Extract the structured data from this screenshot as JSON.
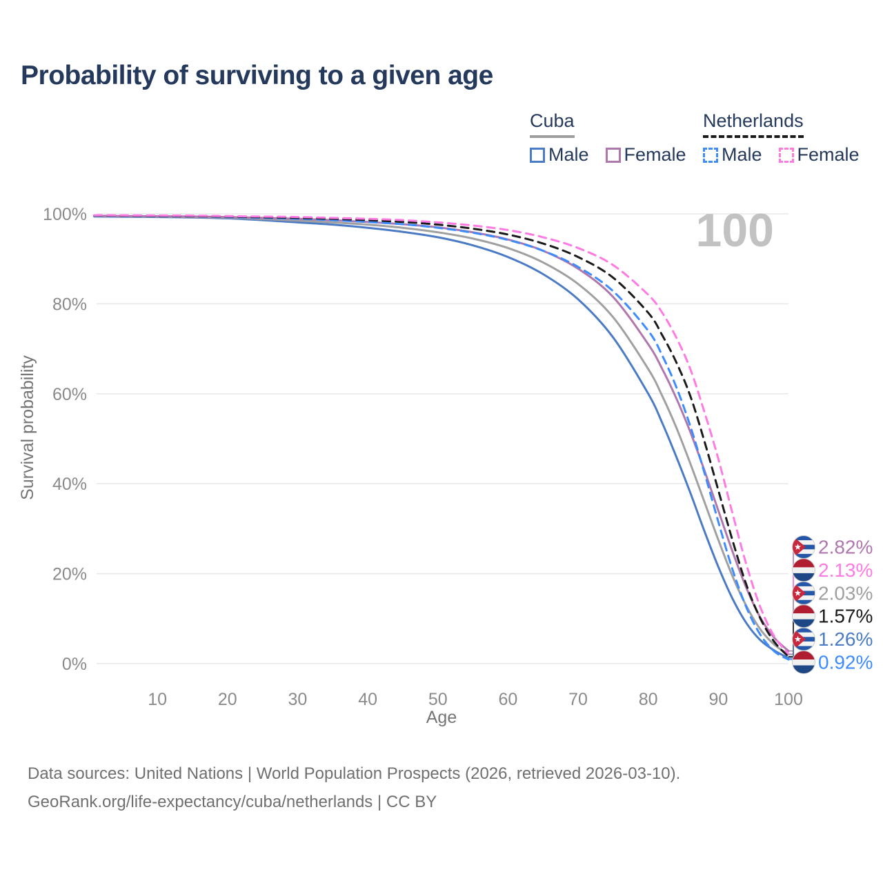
{
  "title": "Probability of surviving to a given age",
  "watermark": "100",
  "legend": {
    "groups": [
      {
        "label": "Cuba",
        "line_style": "solid",
        "underline_color": "#9e9e9e",
        "items": [
          {
            "label": "Male",
            "color": "#4a7bc4",
            "dashed": false
          },
          {
            "label": "Female",
            "color": "#b077ad",
            "dashed": false
          }
        ]
      },
      {
        "label": "Netherlands",
        "line_style": "dashed",
        "underline_color": "#1a1a1a",
        "items": [
          {
            "label": "Male",
            "color": "#3d8bfd",
            "dashed": true
          },
          {
            "label": "Female",
            "color": "#ff7ae3",
            "dashed": true
          }
        ]
      }
    ]
  },
  "chart_data": {
    "type": "line",
    "title": "Probability of surviving to a given age",
    "xlabel": "Age",
    "ylabel": "Survival probability",
    "xlim": [
      1,
      100
    ],
    "ylim": [
      0,
      100
    ],
    "grid": "horizontal",
    "legend_position": "top-right",
    "x_ticks": [
      10,
      20,
      30,
      40,
      50,
      60,
      70,
      80,
      90,
      100
    ],
    "y_ticks": [
      100,
      80,
      60,
      40,
      20,
      0
    ],
    "y_tick_labels": [
      "100%",
      "80%",
      "60%",
      "40%",
      "20%",
      "0%"
    ],
    "highlighted_age": 100,
    "x": [
      1,
      5,
      10,
      15,
      20,
      25,
      30,
      35,
      40,
      45,
      50,
      55,
      60,
      65,
      70,
      75,
      80,
      82,
      84,
      86,
      88,
      90,
      92,
      94,
      96,
      98,
      100
    ],
    "series": [
      {
        "name": "Cuba Male",
        "country": "Cuba",
        "sex": "Male",
        "color": "#4a7bc4",
        "dashed": false,
        "values": [
          99.4,
          99.35,
          99.3,
          99.2,
          99.0,
          98.6,
          98.1,
          97.6,
          96.9,
          96.0,
          94.8,
          93.0,
          90.4,
          86.6,
          81.0,
          72.5,
          60.0,
          53.5,
          46.0,
          38.0,
          29.5,
          21.5,
          14.5,
          9.0,
          5.2,
          2.9,
          1.26
        ]
      },
      {
        "name": "Cuba (both sexes)",
        "country": "Cuba",
        "sex": "Both",
        "color": "#a0a0a0",
        "dashed": false,
        "values": [
          99.5,
          99.45,
          99.4,
          99.3,
          99.15,
          98.85,
          98.5,
          98.1,
          97.6,
          96.9,
          95.9,
          94.5,
          92.4,
          89.2,
          84.4,
          77.0,
          65.5,
          59.5,
          52.5,
          44.5,
          36.0,
          27.5,
          19.5,
          12.8,
          7.6,
          4.2,
          2.03
        ]
      },
      {
        "name": "Cuba Female",
        "country": "Cuba",
        "sex": "Female",
        "color": "#b077ad",
        "dashed": false,
        "values": [
          99.55,
          99.5,
          99.45,
          99.4,
          99.3,
          99.1,
          98.9,
          98.6,
          98.2,
          97.7,
          97.0,
          95.9,
          94.3,
          91.8,
          87.8,
          81.5,
          71.0,
          65.5,
          59.0,
          51.5,
          43.0,
          34.0,
          25.0,
          16.8,
          10.2,
          5.7,
          2.82
        ]
      },
      {
        "name": "Netherlands Male",
        "country": "Netherlands",
        "sex": "Male",
        "color": "#3d8bfd",
        "dashed": true,
        "values": [
          99.6,
          99.55,
          99.5,
          99.45,
          99.3,
          99.1,
          98.9,
          98.6,
          98.2,
          97.7,
          96.9,
          95.8,
          94.2,
          91.8,
          88.2,
          82.8,
          74.0,
          68.5,
          61.5,
          52.8,
          42.5,
          31.5,
          21.0,
          12.5,
          6.4,
          2.7,
          0.92
        ]
      },
      {
        "name": "Netherlands (both sexes)",
        "country": "Netherlands",
        "sex": "Both",
        "color": "#1a1a1a",
        "dashed": true,
        "values": [
          99.65,
          99.6,
          99.55,
          99.5,
          99.4,
          99.25,
          99.1,
          98.9,
          98.6,
          98.2,
          97.6,
          96.7,
          95.4,
          93.4,
          90.4,
          85.8,
          78.0,
          73.0,
          67.0,
          59.5,
          49.5,
          38.5,
          27.5,
          17.5,
          10.0,
          4.8,
          1.57
        ]
      },
      {
        "name": "Netherlands Female",
        "country": "Netherlands",
        "sex": "Female",
        "color": "#ff7ae3",
        "dashed": true,
        "values": [
          99.7,
          99.67,
          99.63,
          99.6,
          99.5,
          99.4,
          99.3,
          99.1,
          98.9,
          98.6,
          98.1,
          97.4,
          96.4,
          94.8,
          92.4,
          88.6,
          82.0,
          78.0,
          72.5,
          65.5,
          56.0,
          45.5,
          33.5,
          22.0,
          12.5,
          6.0,
          2.13
        ]
      }
    ],
    "end_labels": [
      {
        "series_index": 2,
        "country": "Cuba",
        "value_label": "2.82%",
        "value": 2.82,
        "color": "#b077ad"
      },
      {
        "series_index": 5,
        "country": "Netherlands",
        "value_label": "2.13%",
        "value": 2.13,
        "color": "#ff7ae3"
      },
      {
        "series_index": 1,
        "country": "Cuba",
        "value_label": "2.03%",
        "value": 2.03,
        "color": "#a0a0a0"
      },
      {
        "series_index": 4,
        "country": "Netherlands",
        "value_label": "1.57%",
        "value": 1.57,
        "color": "#1a1a1a"
      },
      {
        "series_index": 0,
        "country": "Cuba",
        "value_label": "1.26%",
        "value": 1.26,
        "color": "#4a7bc4"
      },
      {
        "series_index": 3,
        "country": "Netherlands",
        "value_label": "0.92%",
        "value": 0.92,
        "color": "#3d8bfd"
      }
    ]
  },
  "footer": {
    "line1": "Data sources: United Nations | World Population Prospects (2026, retrieved 2026-03-10).",
    "line2": "GeoRank.org/life-expectancy/cuba/netherlands | CC BY"
  }
}
